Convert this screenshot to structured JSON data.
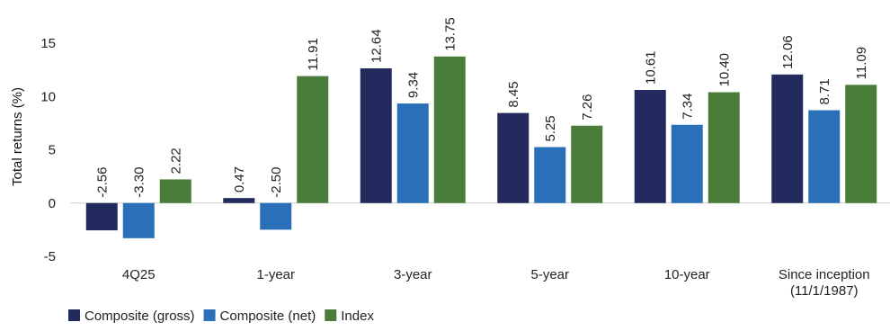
{
  "chart_data": {
    "type": "bar",
    "title": "",
    "xlabel": "",
    "ylabel": "Total returns (%)",
    "ylim": [
      -5,
      15
    ],
    "yticks": [
      15,
      10,
      5,
      0,
      -5
    ],
    "grid": false,
    "legend_position": "bottom-left",
    "categories": [
      [
        "4Q25"
      ],
      [
        "1-year"
      ],
      [
        "3-year"
      ],
      [
        "5-year"
      ],
      [
        "10-year"
      ],
      [
        "Since inception",
        "(11/1/1987)"
      ]
    ],
    "series": [
      {
        "name": "Composite (gross)",
        "color": "#232a5e",
        "values": [
          -2.56,
          0.47,
          12.64,
          8.45,
          10.61,
          12.06
        ],
        "labels": [
          "-2.56",
          "0.47",
          "12.64",
          "8.45",
          "10.61",
          "12.06"
        ]
      },
      {
        "name": "Composite (net)",
        "color": "#2a70b8",
        "values": [
          -3.3,
          -2.5,
          9.34,
          5.25,
          7.34,
          8.71
        ],
        "labels": [
          "-3.30",
          "-2.50",
          "9.34",
          "5.25",
          "7.34",
          "8.71"
        ]
      },
      {
        "name": "Index",
        "color": "#4a7d3a",
        "values": [
          2.22,
          11.91,
          13.75,
          7.26,
          10.4,
          11.09
        ],
        "labels": [
          "2.22",
          "11.91",
          "13.75",
          "7.26",
          "10.40",
          "11.09"
        ]
      }
    ]
  }
}
